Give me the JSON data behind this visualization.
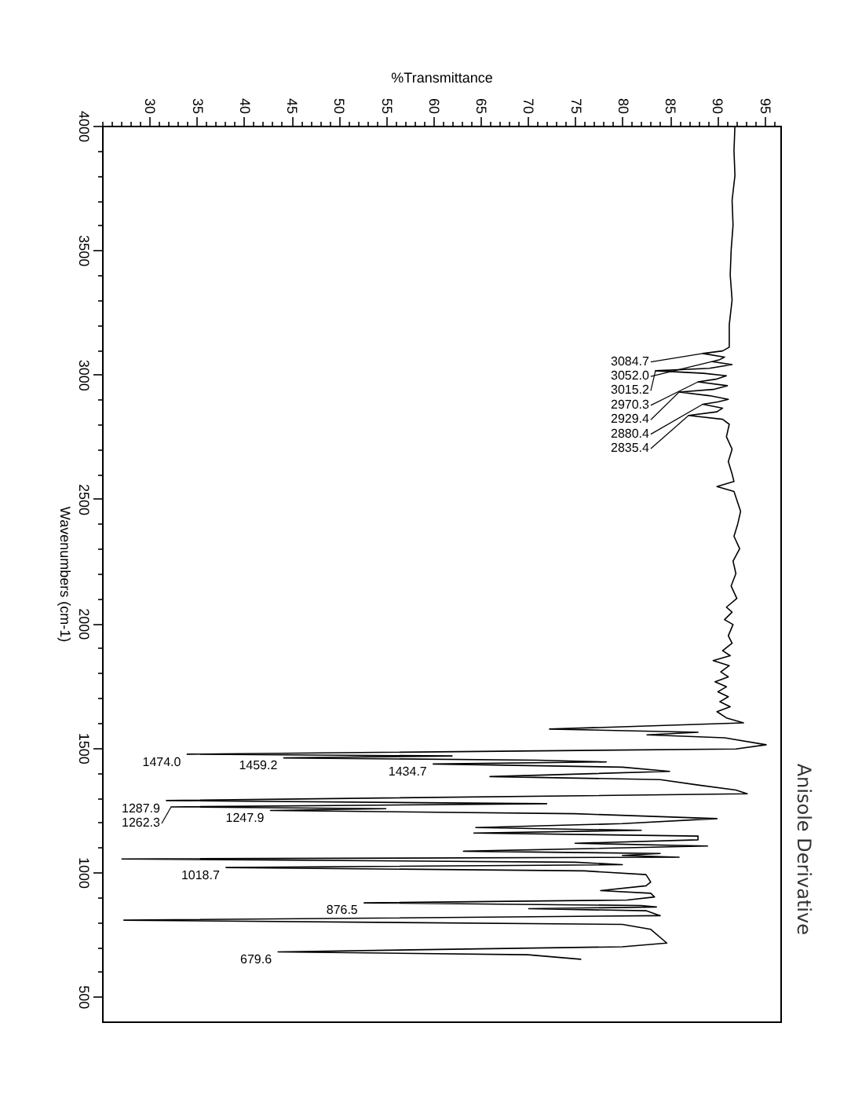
{
  "chart_data": {
    "type": "line",
    "title": "Anisole Derivative",
    "xlabel": "%Transmittance",
    "ylabel": "Wavenumbers (cm-1)",
    "xlim": [
      25,
      96.7
    ],
    "ylim": [
      400,
      4000
    ],
    "xticks": [
      {
        "value": 25,
        "label": null
      },
      {
        "value": 26,
        "label": null
      },
      {
        "value": 27,
        "label": null
      },
      {
        "value": 28,
        "label": null
      },
      {
        "value": 29,
        "label": null
      },
      30,
      {
        "value": 31,
        "label": null
      },
      {
        "value": 32,
        "label": null
      },
      {
        "value": 33,
        "label": null
      },
      {
        "value": 34,
        "label": null
      },
      35,
      {
        "value": 36,
        "label": null
      },
      {
        "value": 37,
        "label": null
      },
      {
        "value": 38,
        "label": null
      },
      {
        "value": 39,
        "label": null
      },
      40,
      {
        "value": 41,
        "label": null
      },
      {
        "value": 42,
        "label": null
      },
      {
        "value": 43,
        "label": null
      },
      {
        "value": 44,
        "label": null
      },
      45,
      {
        "value": 46,
        "label": null
      },
      {
        "value": 47,
        "label": null
      },
      {
        "value": 48,
        "label": null
      },
      {
        "value": 49,
        "label": null
      },
      50,
      {
        "value": 51,
        "label": null
      },
      {
        "value": 52,
        "label": null
      },
      {
        "value": 53,
        "label": null
      },
      {
        "value": 54,
        "label": null
      },
      55,
      {
        "value": 56,
        "label": null
      },
      {
        "value": 57,
        "label": null
      },
      {
        "value": 58,
        "label": null
      },
      {
        "value": 59,
        "label": null
      },
      60,
      {
        "value": 61,
        "label": null
      },
      {
        "value": 62,
        "label": null
      },
      {
        "value": 63,
        "label": null
      },
      {
        "value": 64,
        "label": null
      },
      65,
      {
        "value": 66,
        "label": null
      },
      {
        "value": 67,
        "label": null
      },
      {
        "value": 68,
        "label": null
      },
      {
        "value": 69,
        "label": null
      },
      70,
      {
        "value": 71,
        "label": null
      },
      {
        "value": 72,
        "label": null
      },
      {
        "value": 73,
        "label": null
      },
      {
        "value": 74,
        "label": null
      },
      75,
      {
        "value": 76,
        "label": null
      },
      {
        "value": 77,
        "label": null
      },
      {
        "value": 78,
        "label": null
      },
      {
        "value": 79,
        "label": null
      },
      80,
      {
        "value": 81,
        "label": null
      },
      {
        "value": 82,
        "label": null
      },
      {
        "value": 83,
        "label": null
      },
      {
        "value": 84,
        "label": null
      },
      85,
      {
        "value": 86,
        "label": null
      },
      {
        "value": 87,
        "label": null
      },
      {
        "value": 88,
        "label": null
      },
      {
        "value": 89,
        "label": null
      },
      90,
      {
        "value": 91,
        "label": null
      },
      {
        "value": 92,
        "label": null
      },
      {
        "value": 93,
        "label": null
      },
      {
        "value": 94,
        "label": null
      },
      95,
      {
        "value": 96,
        "label": null
      }
    ],
    "yticks": [
      500,
      {
        "value": 600,
        "label": null
      },
      {
        "value": 700,
        "label": null
      },
      {
        "value": 800,
        "label": null
      },
      {
        "value": 900,
        "label": null
      },
      1000,
      {
        "value": 1100,
        "label": null
      },
      {
        "value": 1200,
        "label": null
      },
      {
        "value": 1300,
        "label": null
      },
      {
        "value": 1400,
        "label": null
      },
      1500,
      {
        "value": 1600,
        "label": null
      },
      {
        "value": 1700,
        "label": null
      },
      {
        "value": 1800,
        "label": null
      },
      {
        "value": 1900,
        "label": null
      },
      2000,
      {
        "value": 2100,
        "label": null
      },
      {
        "value": 2200,
        "label": null
      },
      {
        "value": 2300,
        "label": null
      },
      {
        "value": 2400,
        "label": null
      },
      2500,
      {
        "value": 2600,
        "label": null
      },
      {
        "value": 2700,
        "label": null
      },
      {
        "value": 2800,
        "label": null
      },
      {
        "value": 2900,
        "label": null
      },
      3000,
      {
        "value": 3100,
        "label": null
      },
      {
        "value": 3200,
        "label": null
      },
      {
        "value": 3300,
        "label": null
      },
      {
        "value": 3400,
        "label": null
      },
      3500,
      {
        "value": 3600,
        "label": null
      },
      {
        "value": 3700,
        "label": null
      },
      {
        "value": 3800,
        "label": null
      },
      {
        "value": 3900,
        "label": null
      },
      4000
    ],
    "series": [
      {
        "color": "#000000",
        "x": [
          91.9,
          91.8,
          91.9,
          91.6,
          91.7,
          91.5,
          91.4,
          91.6,
          91.3,
          91.3,
          90.6,
          88.5,
          90.8,
          90.3,
          89.5,
          91.6,
          89.2,
          83.5,
          88.6,
          91.0,
          90.0,
          88.0,
          91.1,
          89.6,
          86.0,
          89.2,
          91.2,
          90.1,
          88.5,
          90.6,
          90.0,
          87.0,
          90.6,
          91.3,
          91.0,
          91.6,
          91.2,
          91.6,
          91.8,
          90.0,
          91.8,
          92.5,
          92.2,
          91.8,
          92.4,
          91.7,
          92.0,
          91.5,
          92.1,
          91.0,
          91.6,
          90.8,
          91.7,
          91.2,
          91.6,
          90.6,
          91.4,
          89.6,
          91.3,
          90.4,
          91.2,
          89.8,
          91.0,
          90.1,
          91.2,
          90.3,
          91.4,
          90.0,
          91.0,
          92.8,
          72.3,
          88.0,
          82.6,
          90.8,
          95.2,
          92.0,
          34.0,
          62.0,
          44.2,
          71.0,
          78.3,
          60.0,
          80.0,
          85.0,
          66.0,
          84.0,
          88.0,
          92.0,
          93.2,
          31.8,
          72.0,
          32.3,
          55.0,
          42.8,
          75.0,
          90.0,
          80.0,
          64.5,
          82.0,
          64.3,
          88.0,
          88.0,
          75.0,
          89.0,
          63.2,
          84.0,
          80.0,
          86.0,
          27.1,
          75.0,
          80.0,
          38.1,
          76.0,
          82.5,
          83.0,
          82.5,
          77.7,
          83.0,
          83.4,
          80.5,
          52.7,
          82.0,
          83.6,
          70.1,
          82.5,
          84.0,
          27.3,
          80.0,
          83.0,
          84.7,
          80.0,
          62.0,
          43.6,
          70.0,
          75.6
        ],
        "values": [
          4000,
          3900,
          3800,
          3700,
          3600,
          3500,
          3400,
          3300,
          3200,
          3110,
          3095,
          3084.7,
          3070,
          3060,
          3052.0,
          3040,
          3025,
          3015.2,
          3005,
          2995,
          2982,
          2970.3,
          2955,
          2940,
          2929.4,
          2915,
          2900,
          2890,
          2880.4,
          2865,
          2850,
          2835.4,
          2820,
          2800,
          2750,
          2700,
          2650,
          2600,
          2570,
          2550,
          2530,
          2450,
          2400,
          2350,
          2300,
          2250,
          2200,
          2150,
          2100,
          2065,
          2045,
          2015,
          1995,
          1950,
          1920,
          1890,
          1870,
          1850,
          1830,
          1805,
          1785,
          1765,
          1745,
          1725,
          1705,
          1685,
          1665,
          1645,
          1620,
          1600,
          1575,
          1562,
          1552,
          1540,
          1512,
          1495,
          1474.0,
          1467,
          1459.2,
          1450,
          1443,
          1434.7,
          1422,
          1405,
          1384,
          1372,
          1350,
          1330,
          1315,
          1287.9,
          1275,
          1262.3,
          1255,
          1247.9,
          1235,
          1215,
          1195,
          1179,
          1168,
          1157,
          1145,
          1130,
          1116,
          1105,
          1084,
          1075,
          1067,
          1060,
          1053,
          1040,
          1030,
          1018.7,
          1005,
          990,
          960,
          945,
          926,
          915,
          900,
          888,
          876.5,
          866,
          860,
          853,
          845,
          825,
          807,
          790,
          770,
          715,
          700,
          690,
          679.6,
          668,
          650
        ]
      }
    ],
    "annotations": [
      {
        "text": "3084.7",
        "x": 88.5,
        "y": 3084.7
      },
      {
        "text": "3052.0",
        "x": 89.5,
        "y": 3052.0
      },
      {
        "text": "3015.2",
        "x": 83.5,
        "y": 3015.2
      },
      {
        "text": "2970.3",
        "x": 88.0,
        "y": 2970.3
      },
      {
        "text": "2929.4",
        "x": 86.0,
        "y": 2929.4
      },
      {
        "text": "2880.4",
        "x": 88.5,
        "y": 2880.4
      },
      {
        "text": "2835.4",
        "x": 87.0,
        "y": 2835.4
      },
      {
        "text": "1474.0",
        "x": 34.0,
        "y": 1474.0
      },
      {
        "text": "1459.2",
        "x": 44.2,
        "y": 1459.2
      },
      {
        "text": "1434.7",
        "x": 60.0,
        "y": 1434.7
      },
      {
        "text": "1287.9",
        "x": 31.8,
        "y": 1287.9
      },
      {
        "text": "1262.3",
        "x": 32.3,
        "y": 1262.3
      },
      {
        "text": "1247.9",
        "x": 42.8,
        "y": 1247.9
      },
      {
        "text": "1018.7",
        "x": 38.1,
        "y": 1018.7
      },
      {
        "text": "876.5",
        "x": 52.7,
        "y": 876.5
      },
      {
        "text": "679.6",
        "x": 43.6,
        "y": 679.6
      }
    ]
  }
}
